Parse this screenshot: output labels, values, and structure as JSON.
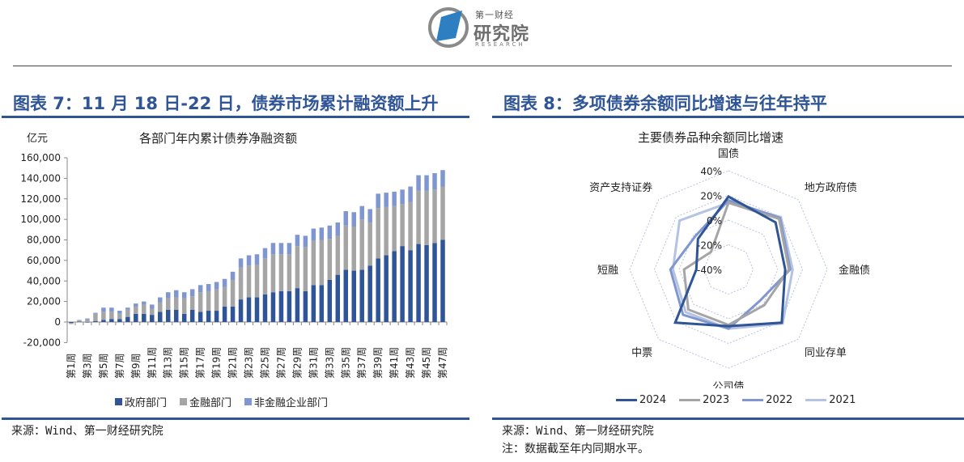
{
  "header": {
    "logo_top": "第一财经",
    "logo_main": "研究院",
    "logo_sub": "RESEARCH"
  },
  "left_panel": {
    "title": "图表 7：11 月 18 日-22 日，债券市场累计融资额上升",
    "chart_title": "各部门年内累计债券净融资额",
    "unit": "亿元",
    "source": "来源：Wind、第一财经研究院",
    "legend": [
      {
        "label": "政府部门",
        "color": "#2f5597"
      },
      {
        "label": "金融部门",
        "color": "#a5a5a5"
      },
      {
        "label": "非金融企业部门",
        "color": "#7f96d0"
      }
    ]
  },
  "right_panel": {
    "title": "图表 8：多项债券余额同比增速与往年持平",
    "chart_title": "主要债券品种余额同比增速",
    "source": "来源：Wind、第一财经研究院",
    "note": "注：数据截至年内同期水平。",
    "legend": [
      {
        "label": "2024",
        "color": "#2f5597"
      },
      {
        "label": "2023",
        "color": "#a5a5a5"
      },
      {
        "label": "2022",
        "color": "#7f96d0"
      },
      {
        "label": "2021",
        "color": "#b4c3e3"
      }
    ]
  },
  "chart_data": [
    {
      "type": "bar",
      "stacked": true,
      "title": "各部门年内累计债券净融资额",
      "ylabel": "亿元",
      "xlabel": "",
      "ylim": [
        -20000,
        160000
      ],
      "yticks": [
        -20000,
        0,
        20000,
        40000,
        60000,
        80000,
        100000,
        120000,
        140000,
        160000
      ],
      "ytick_labels": [
        "-20,000",
        "0",
        "20,000",
        "40,000",
        "60,000",
        "80,000",
        "100,000",
        "120,000",
        "140,000",
        "160,000"
      ],
      "categories": [
        "第1周",
        "第2周",
        "第3周",
        "第4周",
        "第5周",
        "第6周",
        "第7周",
        "第8周",
        "第9周",
        "第10周",
        "第11周",
        "第12周",
        "第13周",
        "第14周",
        "第15周",
        "第16周",
        "第17周",
        "第18周",
        "第19周",
        "第20周",
        "第21周",
        "第22周",
        "第23周",
        "第24周",
        "第25周",
        "第26周",
        "第27周",
        "第28周",
        "第29周",
        "第30周",
        "第31周",
        "第32周",
        "第33周",
        "第34周",
        "第35周",
        "第36周",
        "第37周",
        "第38周",
        "第39周",
        "第40周",
        "第41周",
        "第42周",
        "第43周",
        "第44周",
        "第45周",
        "第46周",
        "第47周"
      ],
      "xtick_labels": [
        "第1周",
        "第3周",
        "第5周",
        "第7周",
        "第9周",
        "第11周",
        "第13周",
        "第15周",
        "第17周",
        "第19周",
        "第21周",
        "第23周",
        "第25周",
        "第27周",
        "第29周",
        "第31周",
        "第33周",
        "第35周",
        "第37周",
        "第39周",
        "第41周",
        "第43周",
        "第45周",
        "第47周"
      ],
      "series": [
        {
          "name": "政府部门",
          "color": "#2f5597",
          "values": [
            -1000,
            500,
            -500,
            1000,
            2000,
            3000,
            3000,
            5000,
            8000,
            8000,
            7000,
            10000,
            12000,
            12000,
            8000,
            12000,
            10000,
            11000,
            11000,
            15000,
            15000,
            22000,
            24000,
            24000,
            27000,
            29000,
            30000,
            30000,
            33000,
            30000,
            36000,
            36000,
            41000,
            46000,
            51000,
            50000,
            51000,
            55000,
            62000,
            65000,
            69000,
            74000,
            70000,
            76000,
            75000,
            77000,
            80000
          ]
        },
        {
          "name": "金融部门",
          "color": "#a5a5a5",
          "values": [
            -1000,
            1000,
            2500,
            7000,
            8000,
            7000,
            5000,
            7000,
            7000,
            9000,
            6000,
            9000,
            11000,
            12000,
            15000,
            13000,
            19000,
            19000,
            21000,
            19000,
            26000,
            31000,
            31000,
            32000,
            35000,
            37000,
            36000,
            36000,
            41000,
            43000,
            43000,
            44000,
            40000,
            38000,
            43000,
            43000,
            49000,
            42000,
            49000,
            47000,
            44000,
            41000,
            47000,
            52000,
            53000,
            52000,
            52000
          ]
        },
        {
          "name": "非金融企业部门",
          "color": "#7f96d0",
          "values": [
            0,
            500,
            1000,
            1000,
            4000,
            4000,
            3000,
            2000,
            3000,
            3000,
            4000,
            5000,
            6000,
            7000,
            6000,
            7000,
            7000,
            7000,
            7000,
            8000,
            8000,
            9000,
            10000,
            10000,
            10000,
            11000,
            11000,
            11000,
            11000,
            11000,
            12000,
            12000,
            13000,
            13000,
            14000,
            14000,
            13000,
            13000,
            14000,
            14000,
            14000,
            14000,
            15000,
            15000,
            15000,
            16000,
            16000
          ]
        }
      ],
      "legend_position": "bottom",
      "grid": false
    },
    {
      "type": "radar",
      "title": "主要债券品种余额同比增速",
      "axes": [
        "国债",
        "地方政府债",
        "金融债",
        "同业存单",
        "公司债",
        "中票",
        "短融",
        "资产支持证券"
      ],
      "rlim": [
        -0.4,
        0.4
      ],
      "rticks": [
        "-40%",
        "-20%",
        "0%",
        "20%",
        "40%"
      ],
      "series": [
        {
          "name": "2024",
          "color": "#2f5597",
          "values": [
            0.19,
            0.14,
            0.06,
            0.21,
            0.06,
            0.21,
            -0.14,
            -0.05
          ]
        },
        {
          "name": "2023",
          "color": "#a5a5a5",
          "values": [
            0.14,
            0.18,
            0.09,
            0.01,
            0.05,
            0.06,
            -0.04,
            -0.2
          ]
        },
        {
          "name": "2022",
          "color": "#7f96d0",
          "values": [
            0.16,
            0.19,
            0.1,
            -0.04,
            0.08,
            0.12,
            0.07,
            -0.02
          ]
        },
        {
          "name": "2021",
          "color": "#b4c3e3",
          "values": [
            0.14,
            0.2,
            0.12,
            0.22,
            0.08,
            0.09,
            0.05,
            0.16
          ]
        }
      ],
      "legend_position": "bottom"
    }
  ]
}
